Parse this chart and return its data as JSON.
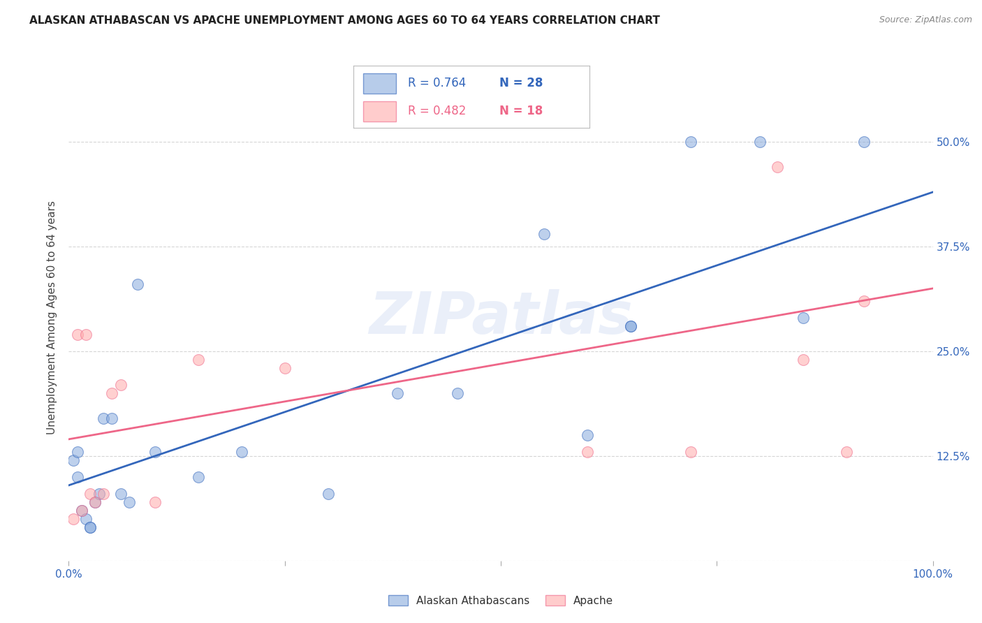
{
  "title": "ALASKAN ATHABASCAN VS APACHE UNEMPLOYMENT AMONG AGES 60 TO 64 YEARS CORRELATION CHART",
  "source": "Source: ZipAtlas.com",
  "ylabel": "Unemployment Among Ages 60 to 64 years",
  "xlim": [
    0.0,
    1.0
  ],
  "ylim": [
    0.0,
    0.58
  ],
  "xticks": [
    0.0,
    0.25,
    0.5,
    0.75,
    1.0
  ],
  "yticks": [
    0.0,
    0.125,
    0.25,
    0.375,
    0.5
  ],
  "ytick_labels_right": [
    "",
    "12.5%",
    "25.0%",
    "37.5%",
    "50.0%"
  ],
  "legend_label1": "Alaskan Athabascans",
  "legend_label2": "Apache",
  "R1": "0.764",
  "N1": "28",
  "R2": "0.482",
  "N2": "18",
  "color_blue": "#88AADD",
  "color_pink": "#FFAAAA",
  "line_color_blue": "#3366BB",
  "line_color_pink": "#EE6688",
  "watermark": "ZIPatlas",
  "blue_x": [
    0.005,
    0.01,
    0.01,
    0.015,
    0.02,
    0.025,
    0.025,
    0.03,
    0.035,
    0.04,
    0.05,
    0.06,
    0.07,
    0.08,
    0.1,
    0.15,
    0.2,
    0.3,
    0.38,
    0.45,
    0.55,
    0.6,
    0.65,
    0.65,
    0.72,
    0.8,
    0.85,
    0.92
  ],
  "blue_y": [
    0.12,
    0.13,
    0.1,
    0.06,
    0.05,
    0.04,
    0.04,
    0.07,
    0.08,
    0.17,
    0.17,
    0.08,
    0.07,
    0.33,
    0.13,
    0.1,
    0.13,
    0.08,
    0.2,
    0.2,
    0.39,
    0.15,
    0.28,
    0.28,
    0.5,
    0.5,
    0.29,
    0.5
  ],
  "pink_x": [
    0.005,
    0.01,
    0.015,
    0.02,
    0.025,
    0.03,
    0.04,
    0.05,
    0.06,
    0.1,
    0.15,
    0.25,
    0.6,
    0.72,
    0.82,
    0.85,
    0.9,
    0.92
  ],
  "pink_y": [
    0.05,
    0.27,
    0.06,
    0.27,
    0.08,
    0.07,
    0.08,
    0.2,
    0.21,
    0.07,
    0.24,
    0.23,
    0.13,
    0.13,
    0.47,
    0.24,
    0.13,
    0.31
  ],
  "blue_trend_x": [
    0.0,
    1.0
  ],
  "blue_trend_y": [
    0.09,
    0.44
  ],
  "pink_trend_x": [
    0.0,
    1.0
  ],
  "pink_trend_y": [
    0.145,
    0.325
  ],
  "marker_size": 130,
  "marker_alpha": 0.55,
  "background_color": "#FFFFFF",
  "grid_color": "#CCCCCC"
}
